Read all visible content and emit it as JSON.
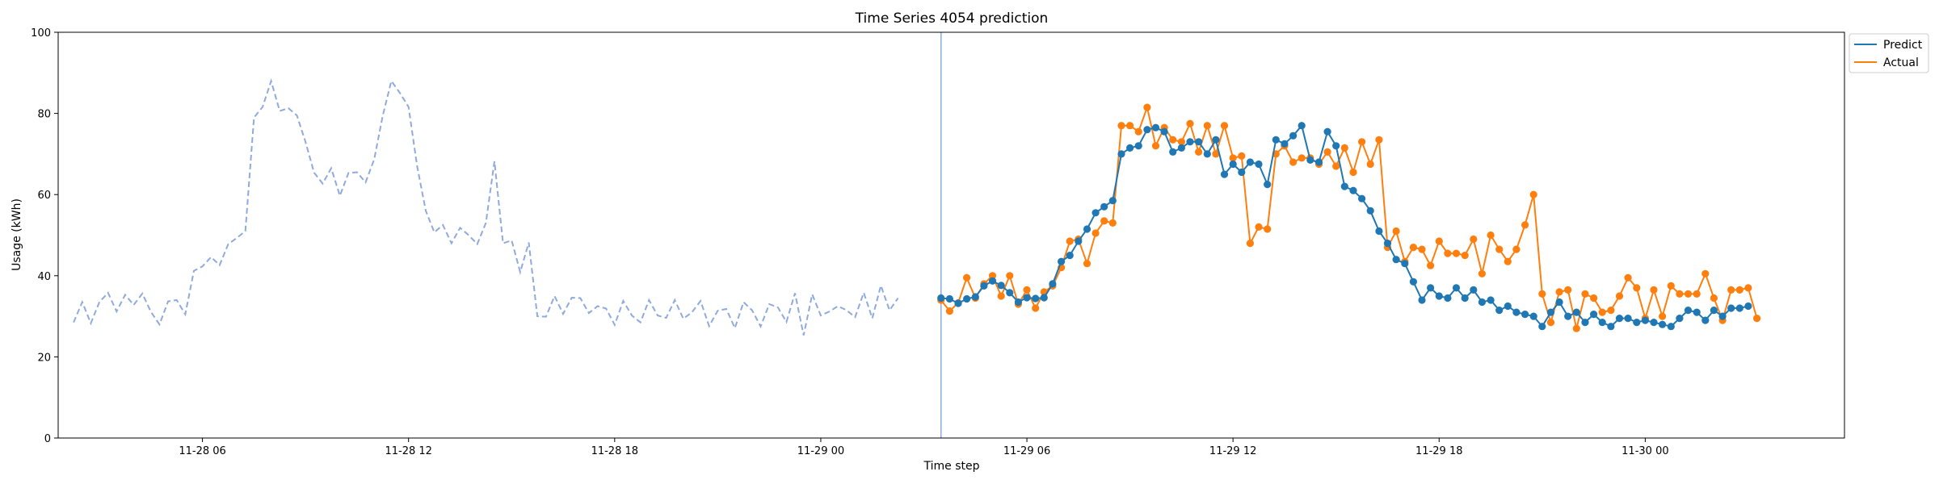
{
  "chart_data": {
    "type": "line",
    "title": "Time Series 4054 prediction",
    "xlabel": "Time step",
    "ylabel": "Usage (kWh)",
    "ylim": [
      0,
      100
    ],
    "yticks": [
      0,
      20,
      40,
      60,
      80,
      100
    ],
    "xlim": [
      "2024-11-28 01:48",
      "2024-11-30 05:48"
    ],
    "xticks": [
      {
        "t": "2024-11-28 06:00",
        "label": "11-28 06"
      },
      {
        "t": "2024-11-28 12:00",
        "label": "11-28 12"
      },
      {
        "t": "2024-11-28 18:00",
        "label": "11-28 18"
      },
      {
        "t": "2024-11-29 00:00",
        "label": "11-29 00"
      },
      {
        "t": "2024-11-29 06:00",
        "label": "11-29 06"
      },
      {
        "t": "2024-11-29 12:00",
        "label": "11-29 12"
      },
      {
        "t": "2024-11-29 18:00",
        "label": "11-29 18"
      },
      {
        "t": "2024-11-30 00:00",
        "label": "11-30 00"
      }
    ],
    "grid": false,
    "legend_position": "top-right, outside plot",
    "split_time": "2024-11-29 03:30",
    "history": {
      "start": "2024-11-28 02:15",
      "interval_minutes": 15,
      "color": "#8faadc",
      "values": [
        28.5,
        33.5,
        28.3,
        33.5,
        35.8,
        31.2,
        35.3,
        32.8,
        35.6,
        31.1,
        28.0,
        33.7,
        34.0,
        30.5,
        41.2,
        42.3,
        44.6,
        42.6,
        47.8,
        49.3,
        51.0,
        79.0,
        81.6,
        88.0,
        80.6,
        81.3,
        79.5,
        73.0,
        65.4,
        62.7,
        66.5,
        59.7,
        65.3,
        65.5,
        63.0,
        68.7,
        79.5,
        88.0,
        85.0,
        81.6,
        67.0,
        56.0,
        50.7,
        52.5,
        48.0,
        51.8,
        50.0,
        47.8,
        53.0,
        68.2,
        48.0,
        48.7,
        40.9,
        48.2,
        30.0,
        29.9,
        35.0,
        30.6,
        34.6,
        34.5,
        30.8,
        32.5,
        31.9,
        27.9,
        33.8,
        30.2,
        28.5,
        34.0,
        30.2,
        29.6,
        34.0,
        29.4,
        31.0,
        33.8,
        27.6,
        31.4,
        31.8,
        27.1,
        33.5,
        31.5,
        27.5,
        33.0,
        32.2,
        28.6,
        35.7,
        25.3,
        35.4,
        30.2,
        31.2,
        32.5,
        31.5,
        29.8,
        35.8,
        29.5,
        37.6,
        31.5,
        34.5
      ]
    },
    "series": [
      {
        "name": "Predict",
        "color": "#1f77b4",
        "start": "2024-11-29 03:30",
        "interval_minutes": 15,
        "values": [
          34.5,
          34.3,
          33.2,
          34.3,
          34.8,
          37.5,
          38.7,
          37.6,
          35.8,
          33.5,
          34.6,
          34.4,
          34.6,
          38.0,
          43.5,
          45.0,
          48.5,
          51.5,
          55.5,
          57.0,
          58.5,
          70.0,
          71.5,
          72.0,
          76.0,
          76.5,
          75.5,
          70.5,
          71.5,
          73.0,
          73.0,
          70.0,
          73.5,
          65.0,
          67.5,
          65.5,
          68.0,
          67.5,
          62.5,
          73.5,
          72.5,
          74.5,
          77.0,
          68.5,
          68.0,
          75.5,
          72.0,
          62.0,
          61.0,
          59.0,
          56.0,
          51.0,
          48.0,
          44.0,
          43.0,
          38.5,
          34.0,
          37.0,
          35.0,
          34.5,
          37.0,
          34.5,
          36.5,
          33.5,
          34.0,
          31.5,
          32.5,
          31.0,
          30.5,
          30.0,
          27.5,
          31.0,
          33.5,
          30.0,
          31.0,
          28.5,
          30.5,
          28.5,
          27.5,
          29.5,
          29.5,
          28.5,
          29.0,
          28.5,
          28.0,
          27.5,
          29.5,
          31.5,
          31.0,
          29.0,
          31.5,
          30.0,
          32.0,
          32.0,
          32.5
        ]
      },
      {
        "name": "Actual",
        "color": "#ff7f0e",
        "start": "2024-11-29 03:30",
        "interval_minutes": 15,
        "values": [
          34.0,
          31.3,
          33.3,
          39.5,
          34.5,
          38.0,
          40.0,
          35.0,
          40.0,
          33.0,
          36.5,
          32.0,
          36.0,
          37.5,
          42.0,
          48.5,
          49.0,
          43.0,
          50.5,
          53.5,
          53.0,
          77.0,
          77.0,
          75.5,
          81.5,
          72.0,
          76.5,
          73.5,
          73.0,
          77.5,
          70.5,
          77.0,
          70.0,
          77.0,
          69.0,
          69.5,
          48.0,
          52.0,
          51.5,
          70.0,
          72.0,
          68.0,
          69.0,
          69.0,
          67.5,
          70.5,
          67.0,
          71.5,
          65.5,
          73.0,
          67.5,
          73.5,
          47.0,
          51.0,
          43.5,
          47.0,
          46.5,
          42.5,
          48.5,
          45.5,
          45.5,
          45.0,
          49.0,
          40.5,
          50.0,
          46.5,
          43.5,
          46.5,
          52.5,
          60.0,
          35.5,
          28.5,
          36.0,
          36.5,
          27.0,
          35.5,
          34.5,
          31.0,
          31.5,
          35.0,
          39.5,
          37.0,
          29.5,
          36.5,
          30.0,
          37.5,
          35.5,
          35.5,
          35.5,
          40.5,
          34.5,
          29.0,
          36.5,
          36.5,
          37.0,
          29.5
        ]
      }
    ]
  }
}
